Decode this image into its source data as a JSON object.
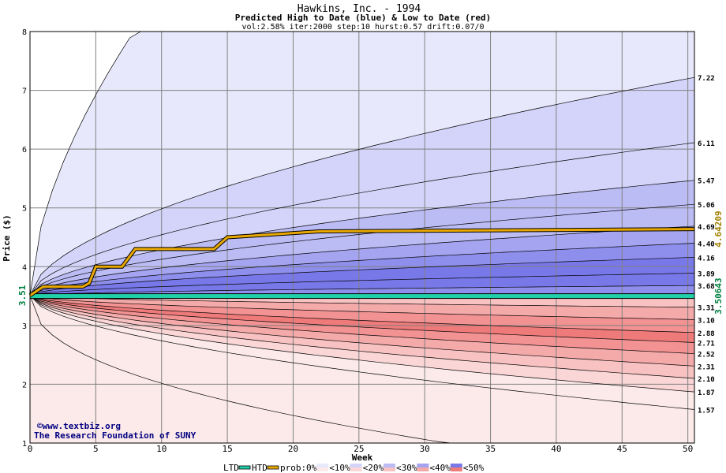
{
  "chart_data": {
    "type": "area",
    "title": "Hawkins, Inc. - 1994",
    "subtitle": "Predicted High to Date (blue) &  Low to Date (red)",
    "params": "vol:2.58% iter:2000 step:10 hurst:0.57 drift:0.07/0",
    "xlabel": "Week",
    "ylabel": "Price ($)",
    "xlim": [
      0,
      50.5
    ],
    "ylim": [
      1,
      8
    ],
    "x_ticks": [
      0,
      5,
      10,
      15,
      20,
      25,
      30,
      35,
      40,
      45,
      50
    ],
    "y_ticks": [
      1,
      2,
      3,
      4,
      5,
      6,
      7,
      8
    ],
    "grid": true,
    "start_price_label": "3.51",
    "right_labels": [
      "7.22",
      "6.11",
      "5.47",
      "5.06",
      "4.69",
      "4.40",
      "4.16",
      "3.89",
      "3.68",
      "3.31",
      "3.10",
      "2.88",
      "2.71",
      "2.52",
      "2.31",
      "2.10",
      "1.87",
      "1.57"
    ],
    "htd_value_label": "4.64209",
    "ltd_value_label": "3.50643",
    "high_fan_end_values": [
      3.68,
      3.89,
      4.16,
      4.4,
      4.69,
      5.06,
      5.47,
      6.11,
      7.22
    ],
    "low_fan_end_values": [
      3.31,
      3.1,
      2.88,
      2.71,
      2.52,
      2.31,
      2.1,
      1.87,
      1.57
    ],
    "htd_series": {
      "x": [
        0,
        1,
        4,
        4.5,
        5,
        7,
        8,
        14,
        15,
        22,
        50.5
      ],
      "y": [
        3.51,
        3.66,
        3.66,
        3.72,
        4.0,
        4.0,
        4.3,
        4.3,
        4.5,
        4.6,
        4.64
      ]
    },
    "ltd_value": 3.5,
    "source": [
      "©www.textbiz.org",
      "The Research Foundation of SUNY"
    ],
    "legend": {
      "ltd": "LTD",
      "htd": "HTD",
      "prob": "prob:",
      "items": [
        "0%",
        "<10%",
        "<20%",
        "<30%",
        "<40%",
        "<50%"
      ]
    },
    "colors": {
      "high_bands": [
        "#e8e8fc",
        "#d4d4fa",
        "#bcbcf5",
        "#a4a4f0",
        "#8e8eec",
        "#7878e8"
      ],
      "low_bands": [
        "#fceaea",
        "#fad6d6",
        "#f8c2c2",
        "#f5aaaa",
        "#f29292",
        "#ef7a7a"
      ],
      "htd": "#e8a800",
      "ltd": "#20d0a8",
      "htd_label": "#a08000",
      "ltd_label": "#008040",
      "source_text": "#000080"
    }
  }
}
